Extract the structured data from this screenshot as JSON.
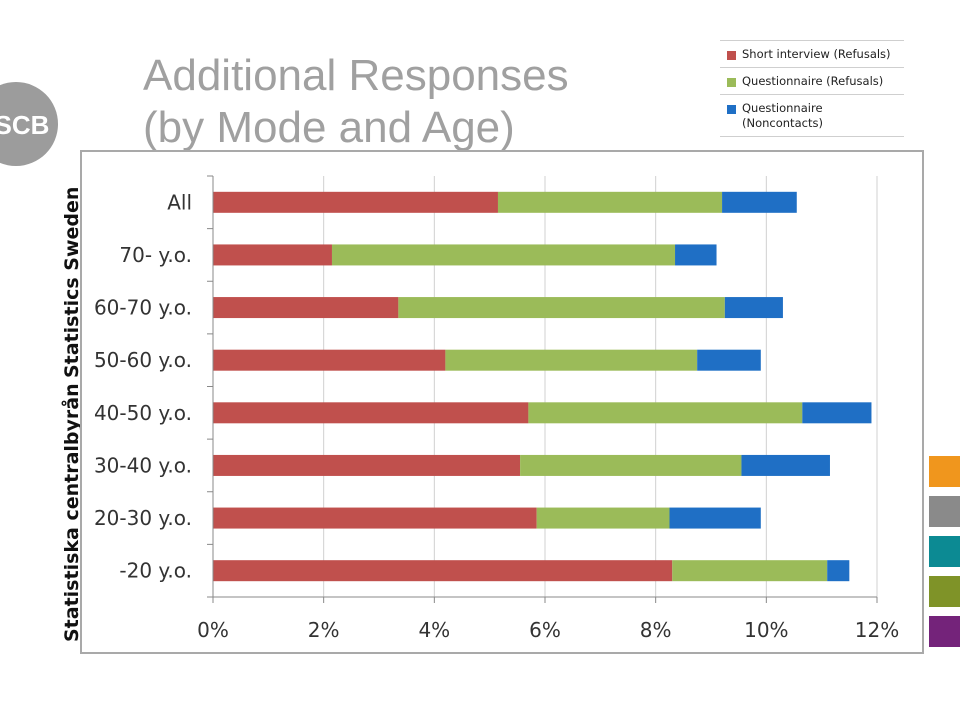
{
  "title_line1": "Additional Responses",
  "title_line2": "(by Mode and Age)",
  "logo_text": "SCB",
  "side_label_1": "Statistics Sweden",
  "side_label_2": "Statistiska centralbyrån",
  "colors": {
    "short": "#c0504d",
    "quest_ref": "#9bbb59",
    "quest_non": "#1f6fc5",
    "title": "#a0a0a0",
    "logo": "#9c9c9c"
  },
  "accent_squares": [
    "#f0961d",
    "#8a8a8a",
    "#0c8a93",
    "#7f9328",
    "#74237a"
  ],
  "chart_data": {
    "type": "bar",
    "orientation": "horizontal",
    "stacked": true,
    "categories": [
      "All",
      "70- y.o.",
      "60-70 y.o.",
      "50-60 y.o.",
      "40-50 y.o.",
      "30-40 y.o.",
      "20-30 y.o.",
      "-20 y.o."
    ],
    "series": [
      {
        "name": "Short interview (Refusals)",
        "color": "#c0504d",
        "values": [
          5.15,
          2.15,
          3.35,
          4.2,
          5.7,
          5.55,
          5.85,
          8.3
        ]
      },
      {
        "name": "Questionnaire (Refusals)",
        "color": "#9bbb59",
        "values": [
          4.05,
          6.2,
          5.9,
          4.55,
          4.95,
          4.0,
          2.4,
          2.8
        ]
      },
      {
        "name": "Questionnaire\n(Noncontacts)",
        "color": "#1f6fc5",
        "values": [
          1.35,
          0.75,
          1.05,
          1.15,
          1.25,
          1.6,
          1.65,
          0.4
        ]
      }
    ],
    "xticks": [
      "0%",
      "2%",
      "4%",
      "6%",
      "8%",
      "10%",
      "12%"
    ],
    "xlim": [
      0,
      12
    ],
    "grid": "vertical",
    "legend": "top-right"
  }
}
